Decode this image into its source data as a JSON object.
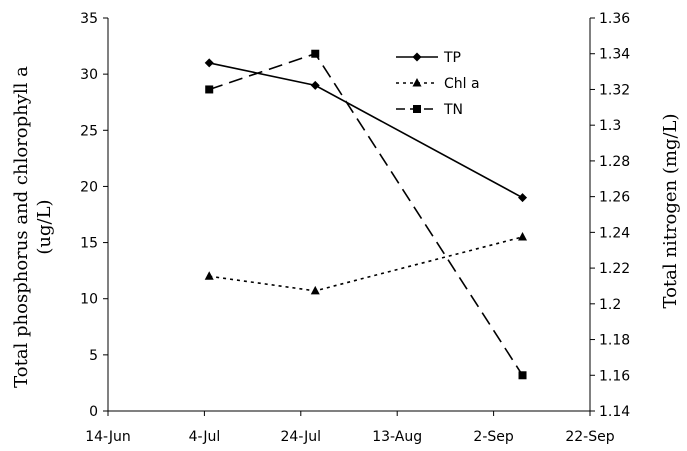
{
  "chart_data": {
    "type": "line",
    "x_ticks": [
      "14-Jun",
      "4-Jul",
      "24-Jul",
      "13-Aug",
      "2-Sep",
      "22-Sep"
    ],
    "y_left": {
      "label_line1": "Total phosphorus and chlorophyll a",
      "label_line2": "(ug/L)",
      "min": 0,
      "max": 35,
      "step": 5,
      "ticks": [
        "0",
        "5",
        "10",
        "15",
        "20",
        "25",
        "30",
        "35"
      ]
    },
    "y_right": {
      "label": "Total nitrogen (mg/L)",
      "min": 1.14,
      "max": 1.36,
      "step": 0.02,
      "ticks": [
        "1.14",
        "1.16",
        "1.18",
        "1.2",
        "1.22",
        "1.24",
        "1.26",
        "1.28",
        "1.3",
        "1.32",
        "1.34",
        "1.36"
      ]
    },
    "series": [
      {
        "name": "TP",
        "axis": "left",
        "marker": "diamond",
        "dash": "solid",
        "color": "#000000",
        "points": [
          {
            "x": "2007-07-05",
            "y": 31
          },
          {
            "x": "2007-07-27",
            "y": 29
          },
          {
            "x": "2007-09-08",
            "y": 19
          }
        ]
      },
      {
        "name": "Chl a",
        "axis": "left",
        "marker": "triangle",
        "dash": "dotted",
        "color": "#000000",
        "points": [
          {
            "x": "2007-07-05",
            "y": 12
          },
          {
            "x": "2007-07-27",
            "y": 10.7
          },
          {
            "x": "2007-09-08",
            "y": 15.5
          }
        ]
      },
      {
        "name": "TN",
        "axis": "right",
        "marker": "square",
        "dash": "dashed",
        "color": "#000000",
        "points": [
          {
            "x": "2007-07-05",
            "y": 1.32
          },
          {
            "x": "2007-07-27",
            "y": 1.34
          },
          {
            "x": "2007-09-08",
            "y": 1.16
          }
        ]
      }
    ],
    "legend_position": "top-right",
    "grid": false
  }
}
